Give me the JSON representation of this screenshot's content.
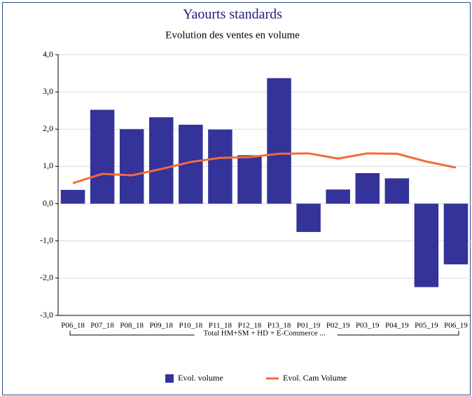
{
  "chart_data": {
    "type": "bar_line",
    "title": "Yaourts standards",
    "subtitle": "Evolution des ventes en volume",
    "categories": [
      "P06_18",
      "P07_18",
      "P08_18",
      "P09_18",
      "P10_18",
      "P11_18",
      "P12_18",
      "P13_18",
      "P01_19",
      "P02_19",
      "P03_19",
      "P04_19",
      "P05_19",
      "P06_19"
    ],
    "group_label": "Total HM+SM + HD + E-Commerce ...",
    "series": [
      {
        "name": "Evol. volume",
        "type": "bar",
        "color": "#333399",
        "values": [
          0.37,
          2.52,
          2.0,
          2.32,
          2.12,
          1.99,
          1.3,
          3.37,
          -0.76,
          0.38,
          0.82,
          0.68,
          -2.24,
          -1.63
        ]
      },
      {
        "name": "Evol. Cam Volume",
        "type": "line",
        "color": "#f26b3a",
        "values": [
          0.55,
          0.8,
          0.76,
          0.93,
          1.12,
          1.23,
          1.25,
          1.34,
          1.35,
          1.21,
          1.35,
          1.34,
          1.13,
          0.97
        ]
      }
    ],
    "ylim": [
      -3,
      4
    ],
    "yticks": [
      {
        "value": -3,
        "label": "-3,0"
      },
      {
        "value": -2,
        "label": "-2,0"
      },
      {
        "value": -1,
        "label": "-1,0"
      },
      {
        "value": 0,
        "label": "0,0"
      },
      {
        "value": 1,
        "label": "1,0"
      },
      {
        "value": 2,
        "label": "2,0"
      },
      {
        "value": 3,
        "label": "3,0"
      },
      {
        "value": 4,
        "label": "4,0"
      }
    ],
    "grid": true,
    "legend": "bottom"
  }
}
